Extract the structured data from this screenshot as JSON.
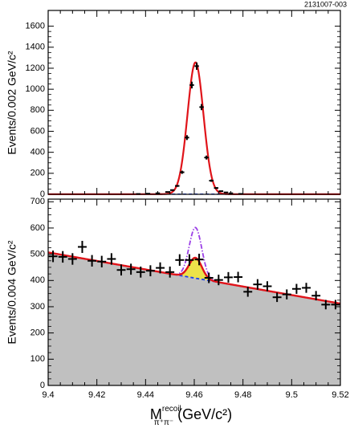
{
  "figure_id": "2131007-003",
  "colors": {
    "fit": "#e0141a",
    "background_curve": "#1a3ef0",
    "signal_dashdot": "#9b3fe6",
    "fill_gray": "#c0c0c0",
    "fill_yellow": "#ece24a",
    "axis": "#000000"
  },
  "chart_data": [
    {
      "type": "scatter",
      "panel": "top",
      "ylabel": "Events/0.002 GeV/c²",
      "xlim": [
        9.4,
        9.52
      ],
      "ylim": [
        0,
        1750
      ],
      "y_ticks": [
        "0",
        "200",
        "400",
        "600",
        "800",
        "1000",
        "1200",
        "1400",
        "1600"
      ],
      "points": {
        "x": [
          9.437,
          9.441,
          9.445,
          9.449,
          9.451,
          9.453,
          9.455,
          9.457,
          9.459,
          9.461,
          9.463,
          9.465,
          9.467,
          9.469,
          9.471,
          9.473,
          9.475,
          9.479
        ],
        "y": [
          3,
          6,
          10,
          22,
          40,
          80,
          210,
          540,
          1040,
          1220,
          830,
          350,
          130,
          60,
          30,
          18,
          10,
          4
        ],
        "yerr": [
          2,
          3,
          3,
          5,
          7,
          9,
          15,
          23,
          32,
          35,
          29,
          19,
          11,
          8,
          6,
          4,
          3,
          2
        ]
      },
      "fit": {
        "peak_x": 9.4605,
        "peak_y": 1230,
        "sigma": 0.0033,
        "baseline": 1
      }
    },
    {
      "type": "scatter",
      "panel": "bottom",
      "ylabel": "Events/0.004 GeV/c²",
      "xlabel": "M",
      "xlabel_sup": "recoil",
      "xlabel_sub": "π⁺π⁻",
      "xlabel_units": " (GeV/c²)",
      "xlim": [
        9.4,
        9.52
      ],
      "ylim": [
        0,
        710
      ],
      "x_ticks": [
        "9.4",
        "9.42",
        "9.44",
        "9.46",
        "9.48",
        "9.5",
        "9.52"
      ],
      "y_ticks": [
        "0",
        "100",
        "200",
        "300",
        "400",
        "500",
        "600",
        "700"
      ],
      "points": {
        "x": [
          9.402,
          9.406,
          9.41,
          9.414,
          9.418,
          9.422,
          9.426,
          9.43,
          9.434,
          9.438,
          9.442,
          9.446,
          9.45,
          9.454,
          9.458,
          9.462,
          9.466,
          9.47,
          9.474,
          9.478,
          9.482,
          9.486,
          9.49,
          9.494,
          9.498,
          9.502,
          9.506,
          9.51,
          9.514,
          9.518
        ],
        "y": [
          492,
          490,
          482,
          528,
          475,
          472,
          482,
          440,
          443,
          432,
          437,
          448,
          432,
          478,
          478,
          480,
          410,
          402,
          412,
          413,
          357,
          385,
          378,
          336,
          347,
          368,
          372,
          342,
          308,
          308
        ],
        "yerr": [
          22,
          22,
          22,
          23,
          22,
          22,
          22,
          21,
          21,
          21,
          21,
          21,
          21,
          22,
          22,
          22,
          20,
          20,
          20,
          20,
          19,
          20,
          19,
          18,
          19,
          19,
          19,
          18,
          18,
          18
        ]
      },
      "fit": {
        "background": {
          "x": [
            9.4,
            9.52
          ],
          "y": [
            507,
            312
          ]
        },
        "signal_peak_x": 9.4605,
        "signal_amplitude_fit": 78,
        "signal_amplitude_dashdot": 193,
        "sigma": 0.0026
      }
    }
  ]
}
